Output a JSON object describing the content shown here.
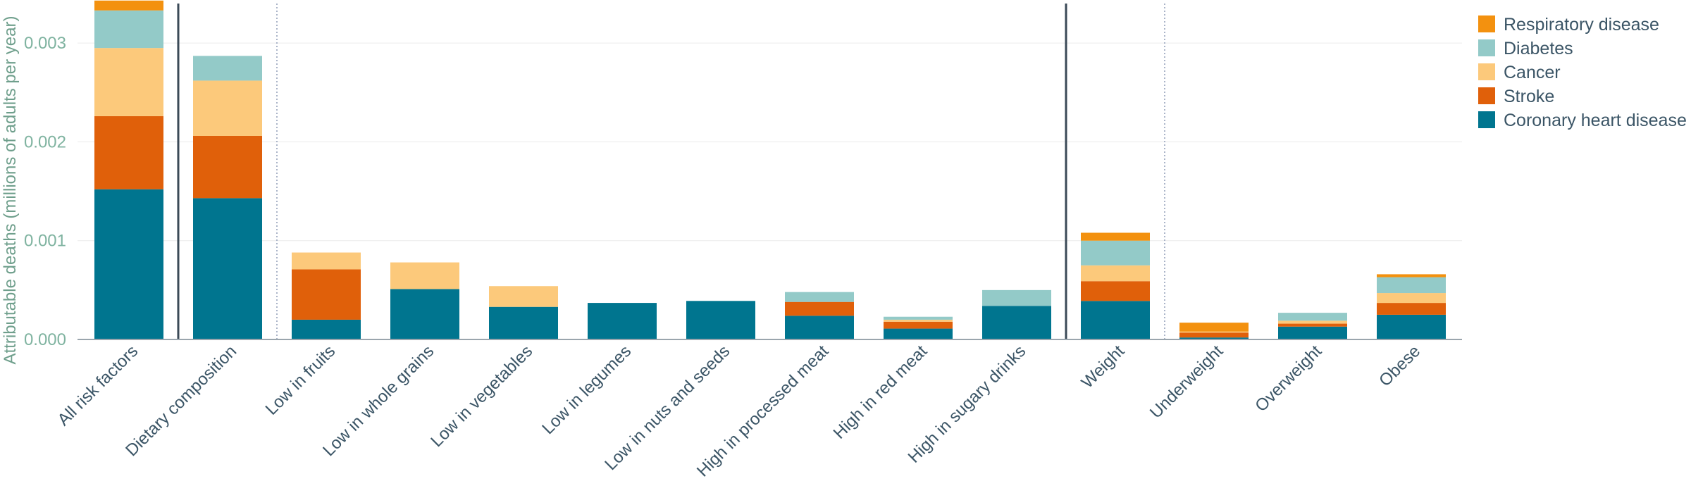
{
  "chart_data": {
    "type": "bar",
    "stacked": true,
    "title": "",
    "xlabel": "",
    "ylabel": "Attributable deaths (millions of adults per year)",
    "ylim": [
      0,
      0.0034
    ],
    "yticks": [
      0,
      0.001,
      0.002,
      0.003
    ],
    "ytick_labels": [
      "0.000",
      "0.001",
      "0.002",
      "0.003"
    ],
    "grid": true,
    "legend_position": "right",
    "categories": [
      "All risk factors",
      "Dietary composition",
      "Low in fruits",
      "Low in whole grains",
      "Low in vegetables",
      "Low in legumes",
      "Low in nuts and seeds",
      "High in processed meat",
      "High in red meat",
      "High in sugary drinks",
      "Weight",
      "Underweight",
      "Overweight",
      "Obese"
    ],
    "series": [
      {
        "name": "Coronary heart disease",
        "color": "#00758f",
        "values": [
          0.00152,
          0.00143,
          0.0002,
          0.00051,
          0.00033,
          0.00037,
          0.00039,
          0.00024,
          0.00011,
          0.00034,
          0.00039,
          2e-05,
          0.00013,
          0.00025
        ]
      },
      {
        "name": "Stroke",
        "color": "#e0600a",
        "values": [
          0.00074,
          0.00063,
          0.00051,
          0.0,
          0.0,
          0.0,
          0.0,
          0.00014,
          7e-05,
          0.0,
          0.0002,
          5e-05,
          3e-05,
          0.00012
        ]
      },
      {
        "name": "Cancer",
        "color": "#fcc97b",
        "values": [
          0.00069,
          0.00056,
          0.00017,
          0.00027,
          0.00021,
          0.0,
          0.0,
          0.0,
          2e-05,
          0.0,
          0.00016,
          1e-05,
          3e-05,
          0.0001
        ]
      },
      {
        "name": "Diabetes",
        "color": "#93cac8",
        "values": [
          0.00038,
          0.00025,
          0.0,
          0.0,
          0.0,
          0.0,
          0.0,
          0.0001,
          3e-05,
          0.00016,
          0.00025,
          0.0,
          8e-05,
          0.00016
        ]
      },
      {
        "name": "Respiratory disease",
        "color": "#f3910f",
        "values": [
          0.0001,
          0.0,
          0.0,
          0.0,
          0.0,
          0.0,
          0.0,
          0.0,
          0.0,
          0.0,
          8e-05,
          9e-05,
          0.0,
          3e-05
        ]
      }
    ],
    "separators": [
      {
        "after_index": 0,
        "style": "solid"
      },
      {
        "after_index": 1,
        "style": "dotted"
      },
      {
        "after_index": 9,
        "style": "solid"
      },
      {
        "after_index": 10,
        "style": "dotted"
      }
    ],
    "legend_order": [
      "Respiratory disease",
      "Diabetes",
      "Cancer",
      "Stroke",
      "Coronary heart disease"
    ]
  }
}
